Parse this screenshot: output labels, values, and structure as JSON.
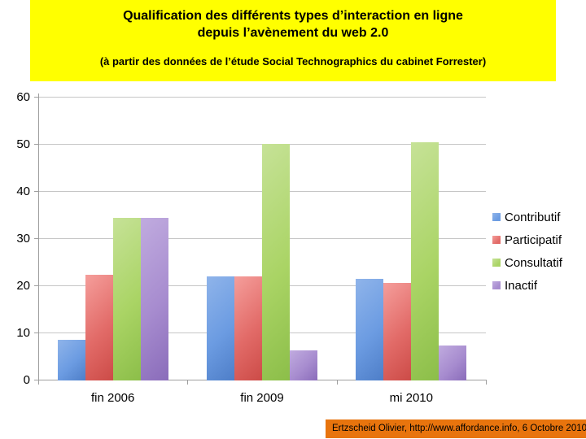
{
  "slide": {
    "title_line1": "Qualification des différents types d’interaction en ligne",
    "title_line2": "depuis l’avènement du web 2.0",
    "subtitle": "(à partir des données de l’étude Social Technographics du cabinet Forrester)"
  },
  "chart_data": {
    "type": "bar",
    "title": "",
    "xlabel": "",
    "ylabel": "",
    "categories": [
      "fin 2006",
      "fin 2009",
      "mi 2010"
    ],
    "series": [
      {
        "name": "Contributif",
        "values": [
          8.7,
          22.0,
          21.5
        ]
      },
      {
        "name": "Participatif",
        "values": [
          22.5,
          22.0,
          20.7
        ]
      },
      {
        "name": "Consultatif",
        "values": [
          34.5,
          50.2,
          50.5
        ]
      },
      {
        "name": "Inactif",
        "values": [
          34.5,
          6.4,
          7.4
        ]
      }
    ],
    "ylim": [
      0,
      60
    ],
    "yticks": [
      0,
      10,
      20,
      30,
      40,
      50,
      60
    ],
    "grid": true,
    "legend_position": "right"
  },
  "footer": {
    "credit": "Ertzscheid Olivier, http://www.affordance.info, 6 Octobre 2010"
  },
  "style": {
    "title_bg": "#ffff00",
    "credit_bg": "#e8740d",
    "grid_color": "#c6c6c6",
    "axis_color": "#9e9e9e",
    "series_colors": [
      {
        "light": "#8fb4ea",
        "base": "#6c9ce2",
        "dark": "#4e7ec8"
      },
      {
        "light": "#f59e9b",
        "base": "#e26b68",
        "dark": "#cc4b47"
      },
      {
        "light": "#c6e297",
        "base": "#aad465",
        "dark": "#8cbe49"
      },
      {
        "light": "#c0abdf",
        "base": "#a78ccf",
        "dark": "#8a6cba"
      }
    ]
  }
}
